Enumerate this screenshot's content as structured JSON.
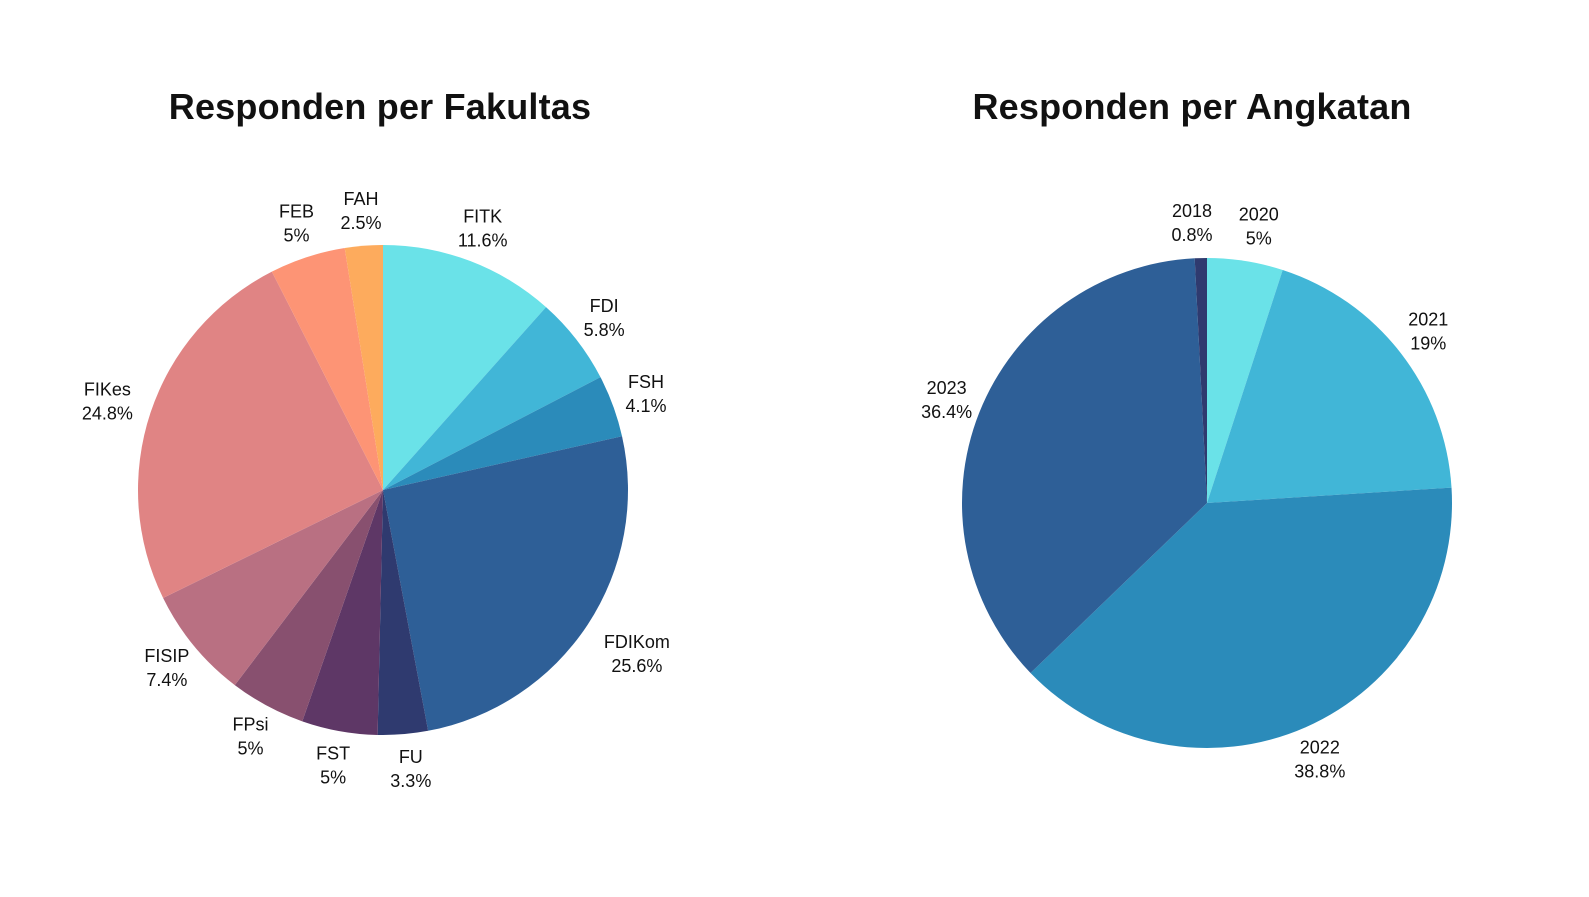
{
  "chart_data": [
    {
      "type": "pie",
      "title": "Responden per Fakultas",
      "start_angle_deg": 0,
      "direction": "clockwise",
      "legend": "none",
      "slices": [
        {
          "label": "FITK",
          "value": 11.6,
          "value_label": "11.6%",
          "color": "#6ae2e8"
        },
        {
          "label": "FDI",
          "value": 5.8,
          "value_label": "5.8%",
          "color": "#41b6d7"
        },
        {
          "label": "FSH",
          "value": 4.1,
          "value_label": "4.1%",
          "color": "#2b8bba"
        },
        {
          "label": "FDIKom",
          "value": 25.6,
          "value_label": "25.6%",
          "color": "#2e5f97"
        },
        {
          "label": "FU",
          "value": 3.3,
          "value_label": "3.3%",
          "color": "#2f3a6f"
        },
        {
          "label": "FST",
          "value": 5,
          "value_label": "5%",
          "color": "#5e3766"
        },
        {
          "label": "FPsi",
          "value": 5,
          "value_label": "5%",
          "color": "#88506f"
        },
        {
          "label": "FISIP",
          "value": 7.4,
          "value_label": "7.4%",
          "color": "#b97082"
        },
        {
          "label": "FIKes",
          "value": 24.8,
          "value_label": "24.8%",
          "color": "#e08484"
        },
        {
          "label": "FEB",
          "value": 5,
          "value_label": "5%",
          "color": "#fd9475"
        },
        {
          "label": "FAH",
          "value": 2.5,
          "value_label": "2.5%",
          "color": "#fdab5d"
        }
      ]
    },
    {
      "type": "pie",
      "title": "Responden per Angkatan",
      "start_angle_deg": 0,
      "direction": "clockwise",
      "legend": "none",
      "slices": [
        {
          "label": "2020",
          "value": 5,
          "value_label": "5%",
          "color": "#6ae2e8"
        },
        {
          "label": "2021",
          "value": 19,
          "value_label": "19%",
          "color": "#41b6d7"
        },
        {
          "label": "2022",
          "value": 38.8,
          "value_label": "38.8%",
          "color": "#2b8bba"
        },
        {
          "label": "2023",
          "value": 36.4,
          "value_label": "36.4%",
          "color": "#2e5f97"
        },
        {
          "label": "2018",
          "value": 0.8,
          "value_label": "0.8%",
          "color": "#2f3a6f"
        }
      ]
    }
  ]
}
